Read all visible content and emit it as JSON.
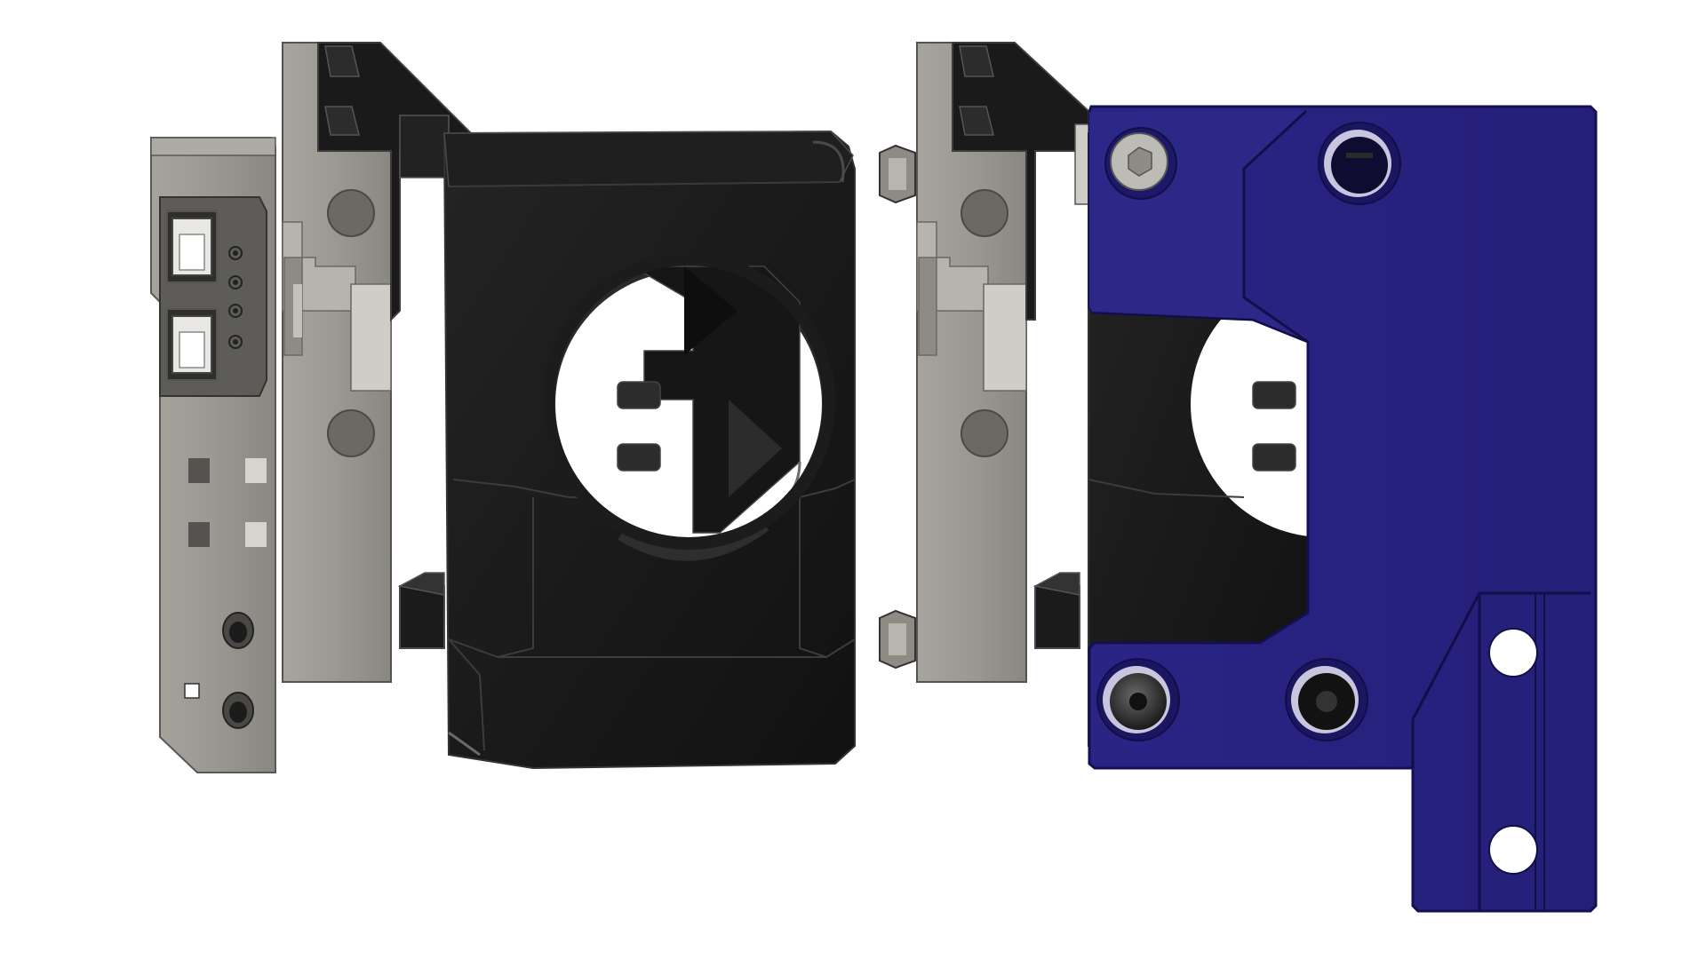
{
  "scene": {
    "background": "#ffffff",
    "colors": {
      "aluminum": "#9b9892",
      "aluminum_dark": "#7b7872",
      "aluminum_light": "#b9b6b0",
      "black_plastic": "#161616",
      "black_edge": "#2e2e2e",
      "blue_part": "#27227d",
      "blue_edge": "#141052",
      "blue_shade": "#1f1a6a",
      "hole_white": "#ffffff",
      "screw_head": "#3a3a3a"
    },
    "views": [
      {
        "id": "left-assembly",
        "parts": [
          "pcb-bracket",
          "aluminum-carriage",
          "black-fan-duct"
        ]
      },
      {
        "id": "right-assembly",
        "parts": [
          "aluminum-carriage",
          "black-fan-duct",
          "blue-mount-plate"
        ]
      }
    ]
  }
}
